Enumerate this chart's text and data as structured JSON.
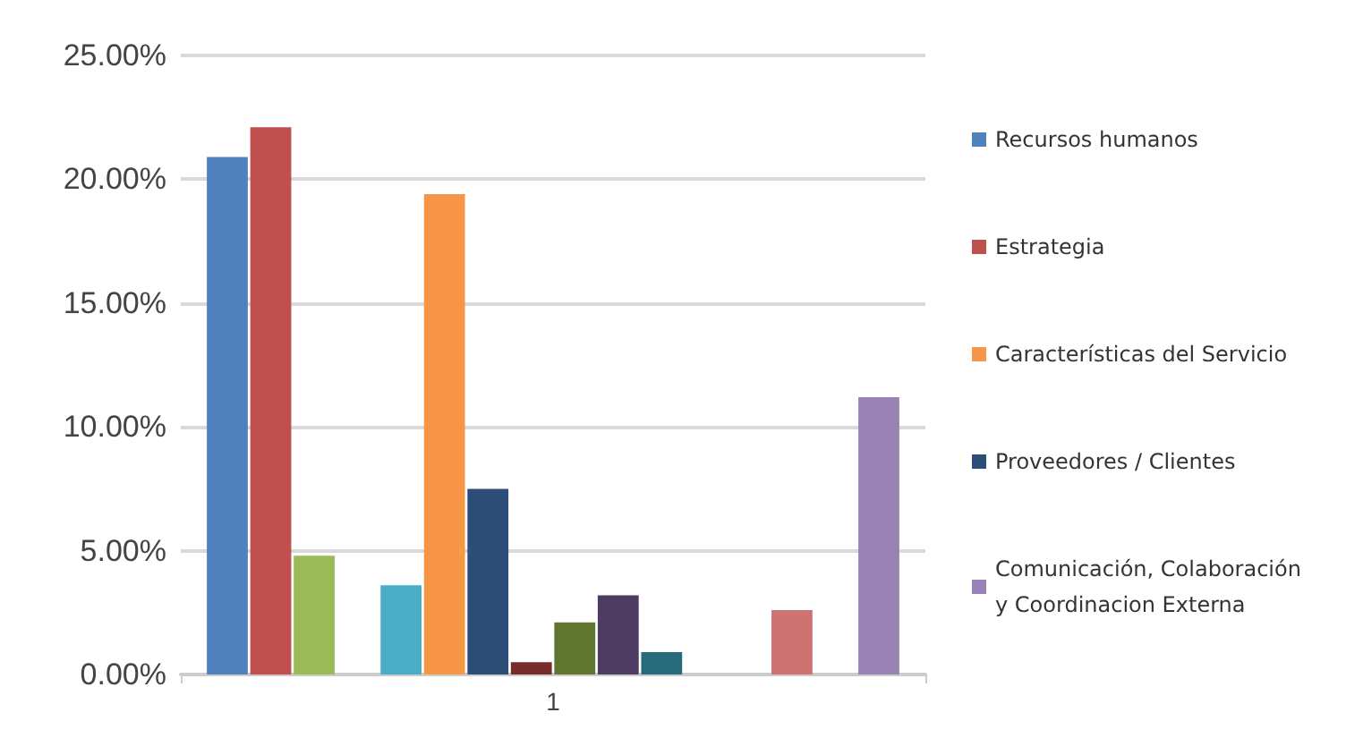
{
  "chart_data": {
    "type": "bar",
    "categories": [
      "1"
    ],
    "series": [
      {
        "name": "Recursos humanos",
        "color": "#4f81bd",
        "values": [
          20.9
        ]
      },
      {
        "name": "Estrategia",
        "color": "#c0504d",
        "values": [
          22.1
        ]
      },
      {
        "color": "#9bbb59",
        "values": [
          4.8
        ]
      },
      {
        "values": [
          null
        ]
      },
      {
        "color": "#4bacc6",
        "values": [
          3.6
        ]
      },
      {
        "name": "Características del Servicio",
        "color": "#f79646",
        "values": [
          19.4
        ]
      },
      {
        "name": "Proveedores / Clientes",
        "color": "#2c4d75",
        "values": [
          7.5
        ]
      },
      {
        "color": "#772c2a",
        "values": [
          0.5
        ]
      },
      {
        "color": "#5f7530",
        "values": [
          2.1
        ]
      },
      {
        "color": "#4d3b62",
        "values": [
          3.2
        ]
      },
      {
        "color": "#276a7c",
        "values": [
          0.9
        ]
      },
      {
        "values": [
          null
        ]
      },
      {
        "values": [
          null
        ]
      },
      {
        "color": "#cd7371",
        "values": [
          2.6
        ]
      },
      {
        "values": [
          null
        ]
      },
      {
        "name": "Comunicación, Colaboración y Coordinacion Externa",
        "color": "#9983b5",
        "values": [
          11.2
        ]
      }
    ],
    "ylim": [
      0,
      25
    ],
    "yticks": [
      {
        "value": 0,
        "label": "0.00%"
      },
      {
        "value": 5,
        "label": "5.00%"
      },
      {
        "value": 10,
        "label": "10.00%"
      },
      {
        "value": 15,
        "label": "15.00%"
      },
      {
        "value": 20,
        "label": "20.00%"
      },
      {
        "value": 25,
        "label": "25.00%"
      }
    ],
    "grid": "y",
    "legend": "right"
  }
}
